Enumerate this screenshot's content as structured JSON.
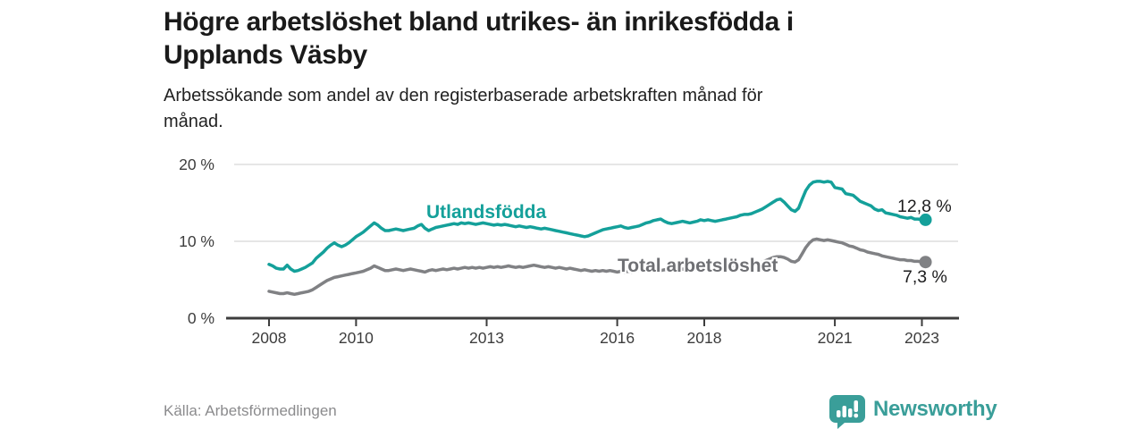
{
  "title": {
    "line1": "Högre arbetslöshet bland utrikes- än inrikesfödda i",
    "line2": "Upplands Väsby",
    "full": "Högre arbetslöshet bland utrikes- än inrikesfödda i Upplands Väsby"
  },
  "subtitle": {
    "line1": "Arbetssökande som andel av den registerbaserade arbetskraften månad för",
    "line2": "månad.",
    "full": "Arbetssökande som andel av den registerbaserade arbetskraften månad för månad."
  },
  "source_text": "Källa: Arbetsförmedlingen",
  "branding": {
    "name": "Newsworthy",
    "icon": "bar-chart-speech-bubble-icon",
    "color": "#3a9e99"
  },
  "colors": {
    "background": "#ffffff",
    "title_text": "#1a1a1a",
    "axis": "#3d3d3d",
    "gridline": "#d8d8d8",
    "series_utlandsfodda": "#14a09a",
    "series_total": "#808184",
    "total_label_text": "#6f7074",
    "end_label_text": "#1d1d1e",
    "source_text": "#8b8b8d"
  },
  "chart_data": {
    "type": "line",
    "title": "Högre arbetslöshet bland utrikes- än inrikesfödda i Upplands Väsby",
    "subtitle": "Arbetssökande som andel av den registerbaserade arbetskraften månad för månad.",
    "x_unit": "monthly",
    "x_start_year": 2008,
    "x_end_year": 2023.08,
    "ylim": [
      0,
      20
    ],
    "grid": "horizontal",
    "gridline_values": [
      10,
      20
    ],
    "y_ticks": [
      {
        "value": 0,
        "label": "0 %"
      },
      {
        "value": 10,
        "label": "10 %"
      },
      {
        "value": 20,
        "label": "20 %"
      }
    ],
    "x_ticks": [
      {
        "year": 2008,
        "label": "2008"
      },
      {
        "year": 2010,
        "label": "2010"
      },
      {
        "year": 2013,
        "label": "2013"
      },
      {
        "year": 2016,
        "label": "2016"
      },
      {
        "year": 2018,
        "label": "2018"
      },
      {
        "year": 2021,
        "label": "2021"
      },
      {
        "year": 2023,
        "label": "2023"
      }
    ],
    "series": [
      {
        "name": "Utlandsfödda",
        "color": "#14a09a",
        "end_value": 12.8,
        "end_label": "12,8 %",
        "values": [
          7.0,
          6.8,
          6.5,
          6.4,
          6.4,
          6.9,
          6.4,
          6.1,
          6.2,
          6.4,
          6.6,
          6.9,
          7.2,
          7.8,
          8.2,
          8.6,
          9.1,
          9.5,
          9.8,
          9.5,
          9.3,
          9.5,
          9.8,
          10.2,
          10.6,
          10.9,
          11.2,
          11.6,
          12.0,
          12.4,
          12.1,
          11.7,
          11.4,
          11.4,
          11.5,
          11.6,
          11.5,
          11.4,
          11.5,
          11.6,
          11.7,
          12.0,
          12.2,
          11.7,
          11.4,
          11.6,
          11.8,
          11.9,
          12.0,
          12.1,
          12.2,
          12.3,
          12.2,
          12.4,
          12.3,
          12.4,
          12.3,
          12.2,
          12.3,
          12.4,
          12.3,
          12.2,
          12.1,
          12.2,
          12.1,
          12.2,
          12.1,
          12.0,
          11.9,
          12.0,
          11.9,
          11.8,
          11.9,
          11.8,
          11.7,
          11.6,
          11.7,
          11.6,
          11.5,
          11.4,
          11.3,
          11.2,
          11.1,
          11.0,
          10.9,
          10.8,
          10.7,
          10.6,
          10.7,
          10.9,
          11.1,
          11.3,
          11.5,
          11.6,
          11.7,
          11.8,
          11.9,
          12.0,
          11.8,
          11.7,
          11.8,
          11.9,
          12.0,
          12.2,
          12.4,
          12.5,
          12.7,
          12.8,
          12.9,
          12.6,
          12.4,
          12.3,
          12.4,
          12.5,
          12.6,
          12.5,
          12.4,
          12.5,
          12.6,
          12.8,
          12.7,
          12.8,
          12.7,
          12.6,
          12.7,
          12.8,
          12.9,
          13.0,
          13.1,
          13.2,
          13.4,
          13.5,
          13.5,
          13.6,
          13.8,
          14.0,
          14.2,
          14.5,
          14.8,
          15.1,
          15.4,
          15.5,
          15.1,
          14.6,
          14.1,
          13.9,
          14.3,
          15.5,
          16.6,
          17.3,
          17.7,
          17.8,
          17.8,
          17.7,
          17.8,
          17.7,
          17.0,
          16.9,
          16.8,
          16.2,
          16.1,
          16.0,
          15.6,
          15.2,
          15.0,
          14.8,
          14.6,
          14.2,
          14.0,
          14.1,
          13.7,
          13.6,
          13.5,
          13.4,
          13.2,
          13.1,
          13.0,
          13.1,
          12.9,
          12.9,
          12.8,
          12.8
        ]
      },
      {
        "name": "Total arbetslöshet",
        "color": "#808184",
        "end_value": 7.3,
        "end_label": "7,3 %",
        "values": [
          3.5,
          3.4,
          3.3,
          3.2,
          3.2,
          3.3,
          3.2,
          3.1,
          3.2,
          3.3,
          3.4,
          3.5,
          3.7,
          4.0,
          4.3,
          4.6,
          4.9,
          5.1,
          5.3,
          5.4,
          5.5,
          5.6,
          5.7,
          5.8,
          5.9,
          6.0,
          6.1,
          6.3,
          6.5,
          6.8,
          6.6,
          6.4,
          6.2,
          6.2,
          6.3,
          6.4,
          6.3,
          6.2,
          6.3,
          6.4,
          6.3,
          6.2,
          6.1,
          6.0,
          6.2,
          6.3,
          6.2,
          6.3,
          6.4,
          6.3,
          6.4,
          6.5,
          6.4,
          6.5,
          6.6,
          6.5,
          6.6,
          6.5,
          6.6,
          6.5,
          6.6,
          6.7,
          6.6,
          6.7,
          6.6,
          6.7,
          6.8,
          6.7,
          6.6,
          6.7,
          6.6,
          6.7,
          6.8,
          6.9,
          6.8,
          6.7,
          6.6,
          6.7,
          6.6,
          6.5,
          6.6,
          6.5,
          6.4,
          6.5,
          6.4,
          6.3,
          6.2,
          6.3,
          6.2,
          6.1,
          6.2,
          6.1,
          6.2,
          6.1,
          6.2,
          6.1,
          6.0,
          6.1,
          6.0,
          6.1,
          6.0,
          6.1,
          6.2,
          6.1,
          6.2,
          6.1,
          6.2,
          6.3,
          6.2,
          6.3,
          6.2,
          6.3,
          6.2,
          6.3,
          6.4,
          6.3,
          6.4,
          6.3,
          6.4,
          6.3,
          6.4,
          6.3,
          6.4,
          6.5,
          6.4,
          6.5,
          6.6,
          6.5,
          6.6,
          6.7,
          6.6,
          6.7,
          6.8,
          6.9,
          7.0,
          7.1,
          7.3,
          7.5,
          7.7,
          7.9,
          8.0,
          8.0,
          7.9,
          7.7,
          7.4,
          7.3,
          7.6,
          8.4,
          9.2,
          9.8,
          10.2,
          10.3,
          10.2,
          10.1,
          10.2,
          10.1,
          10.0,
          9.9,
          9.8,
          9.6,
          9.4,
          9.3,
          9.1,
          8.9,
          8.8,
          8.6,
          8.5,
          8.4,
          8.3,
          8.1,
          8.0,
          7.9,
          7.8,
          7.7,
          7.6,
          7.6,
          7.5,
          7.5,
          7.4,
          7.4,
          7.3,
          7.3
        ]
      }
    ]
  }
}
